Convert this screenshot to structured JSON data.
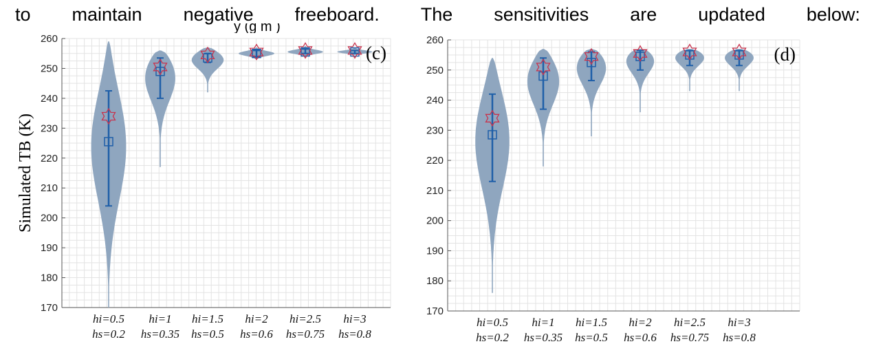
{
  "header": {
    "words": [
      "to",
      "maintain",
      "negative",
      "freeboard.",
      "The",
      "sensitivities",
      "are",
      "updated",
      "below:"
    ],
    "clipped_fragment": "y (g m )"
  },
  "chart_data": [
    {
      "type": "violin",
      "panel_label": "(c)",
      "ylabel": "Simulated TB (K)",
      "ylim": [
        170,
        260
      ],
      "yticks": [
        170,
        180,
        190,
        200,
        210,
        220,
        230,
        240,
        250,
        260
      ],
      "grid": true,
      "categories": [
        {
          "hi": "hi=0.5",
          "hs": "hs=0.2"
        },
        {
          "hi": "hi=1",
          "hs": "hs=0.35"
        },
        {
          "hi": "hi=1.5",
          "hs": "hs=0.5"
        },
        {
          "hi": "hi=2",
          "hs": "hs=0.6"
        },
        {
          "hi": "hi=2.5",
          "hs": "hs=0.75"
        },
        {
          "hi": "hi=3",
          "hs": "hs=0.8"
        }
      ],
      "markers": {
        "observed": "star",
        "mean": "square"
      },
      "observed": [
        234,
        250.5,
        254.5,
        255.5,
        256,
        256
      ],
      "mean": [
        225.5,
        249,
        253.5,
        255,
        255.5,
        255.5
      ],
      "error_low": [
        204,
        240,
        252,
        254,
        255,
        255
      ],
      "error_high": [
        242.5,
        253.5,
        255,
        256,
        256.5,
        256
      ],
      "violin_range": [
        [
          170,
          259
        ],
        [
          217,
          256
        ],
        [
          242,
          257
        ],
        [
          253,
          257
        ],
        [
          254,
          257.5
        ],
        [
          254.5,
          257
        ]
      ],
      "colors": {
        "violin": "#8fa6bf",
        "error": "#1f5fa8",
        "observed": "#c8334d",
        "grid": "#e3e3e3"
      }
    },
    {
      "type": "violin",
      "panel_label": "(d)",
      "ylim": [
        170,
        260
      ],
      "yticks": [
        170,
        180,
        190,
        200,
        210,
        220,
        230,
        240,
        250,
        260
      ],
      "grid": true,
      "categories": [
        {
          "hi": "hi=0.5",
          "hs": "hs=0.2"
        },
        {
          "hi": "hi=1",
          "hs": "hs=0.35"
        },
        {
          "hi": "hi=1.5",
          "hs": "hs=0.5"
        },
        {
          "hi": "hi=2",
          "hs": "hs=0.6"
        },
        {
          "hi": "hi=2.5",
          "hs": "hs=0.75"
        },
        {
          "hi": "hi=3",
          "hs": "hs=0.8"
        }
      ],
      "markers": {
        "observed": "star",
        "mean": "square"
      },
      "observed": [
        234,
        251,
        254.5,
        255.5,
        256,
        256
      ],
      "mean": [
        228.5,
        248,
        252.5,
        254.5,
        255,
        255
      ],
      "error_low": [
        213,
        237,
        246.5,
        250,
        251.5,
        251.5
      ],
      "error_high": [
        242,
        254,
        256,
        256.5,
        256.5,
        256.5
      ],
      "violin_range": [
        [
          176,
          254
        ],
        [
          218,
          257
        ],
        [
          228,
          257
        ],
        [
          236,
          257
        ],
        [
          243,
          257
        ],
        [
          243,
          257
        ]
      ],
      "colors": {
        "violin": "#8fa6bf",
        "error": "#1f5fa8",
        "observed": "#c8334d",
        "grid": "#e3e3e3"
      }
    }
  ]
}
